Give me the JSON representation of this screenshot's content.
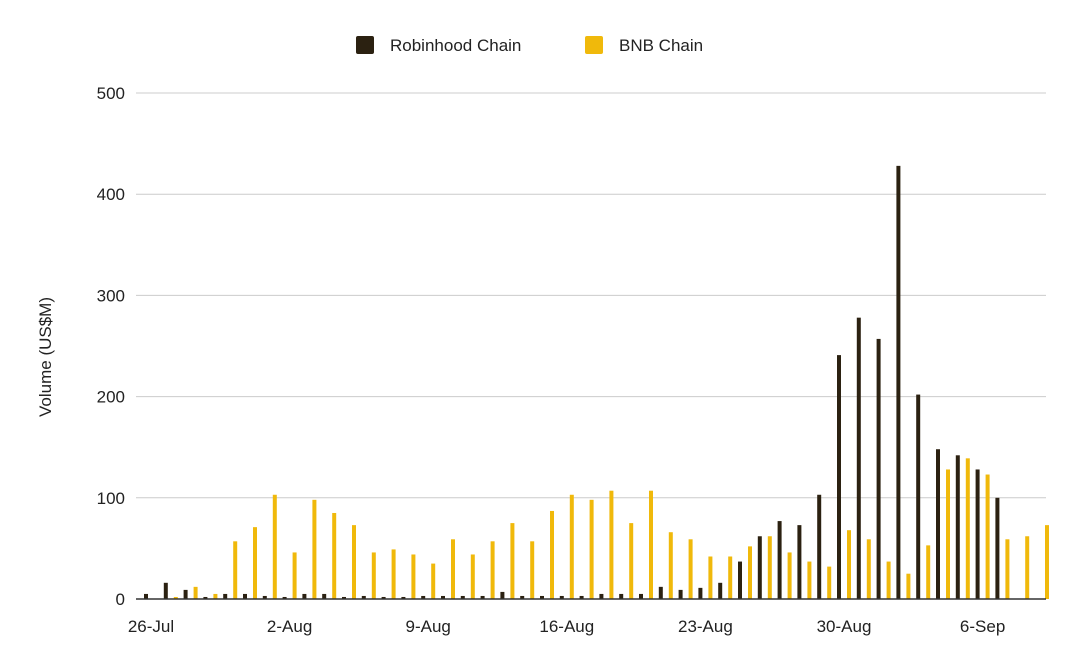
{
  "chart_data": {
    "type": "bar",
    "title": "",
    "xlabel": "",
    "ylabel": "Volume (US$M)",
    "ylim": [
      0,
      500
    ],
    "yticks": [
      0,
      100,
      200,
      300,
      400,
      500
    ],
    "grid": true,
    "legend_position": "top-center",
    "x_tick_labels": [
      {
        "index": 0,
        "label": "26-Jul"
      },
      {
        "index": 7,
        "label": "2-Aug"
      },
      {
        "index": 14,
        "label": "9-Aug"
      },
      {
        "index": 21,
        "label": "16-Aug"
      },
      {
        "index": 28,
        "label": "23-Aug"
      },
      {
        "index": 35,
        "label": "30-Aug"
      },
      {
        "index": 42,
        "label": "6-Sep"
      }
    ],
    "categories": [
      "26-Jul",
      "27-Jul",
      "28-Jul",
      "29-Jul",
      "30-Jul",
      "31-Jul",
      "1-Aug",
      "2-Aug",
      "3-Aug",
      "4-Aug",
      "5-Aug",
      "6-Aug",
      "7-Aug",
      "8-Aug",
      "9-Aug",
      "10-Aug",
      "11-Aug",
      "12-Aug",
      "13-Aug",
      "14-Aug",
      "15-Aug",
      "16-Aug",
      "17-Aug",
      "18-Aug",
      "19-Aug",
      "20-Aug",
      "21-Aug",
      "22-Aug",
      "23-Aug",
      "24-Aug",
      "25-Aug",
      "26-Aug",
      "27-Aug",
      "28-Aug",
      "29-Aug",
      "30-Aug",
      "31-Aug",
      "1-Sep",
      "2-Sep",
      "3-Sep",
      "4-Sep",
      "5-Sep",
      "6-Sep",
      "7-Sep",
      "8-Sep",
      "9-Sep"
    ],
    "series": [
      {
        "name": "Robinhood Chain",
        "color": "#2b2111",
        "values": [
          5,
          16,
          9,
          2,
          5,
          5,
          3,
          2,
          5,
          5,
          2,
          3,
          2,
          2,
          3,
          3,
          3,
          3,
          7,
          3,
          3,
          3,
          3,
          5,
          5,
          5,
          12,
          9,
          11,
          16,
          37,
          62,
          77,
          73,
          103,
          241,
          278,
          257,
          428,
          202,
          148,
          142,
          128,
          100,
          0,
          0
        ]
      },
      {
        "name": "BNB Chain",
        "color": "#f0b90b",
        "values": [
          0,
          2,
          12,
          5,
          57,
          71,
          103,
          46,
          98,
          85,
          73,
          46,
          49,
          44,
          35,
          59,
          44,
          57,
          75,
          57,
          87,
          103,
          98,
          107,
          75,
          107,
          66,
          59,
          42,
          42,
          52,
          62,
          46,
          37,
          32,
          68,
          59,
          37,
          25,
          53,
          128,
          139,
          123,
          59,
          62,
          73
        ]
      }
    ]
  }
}
